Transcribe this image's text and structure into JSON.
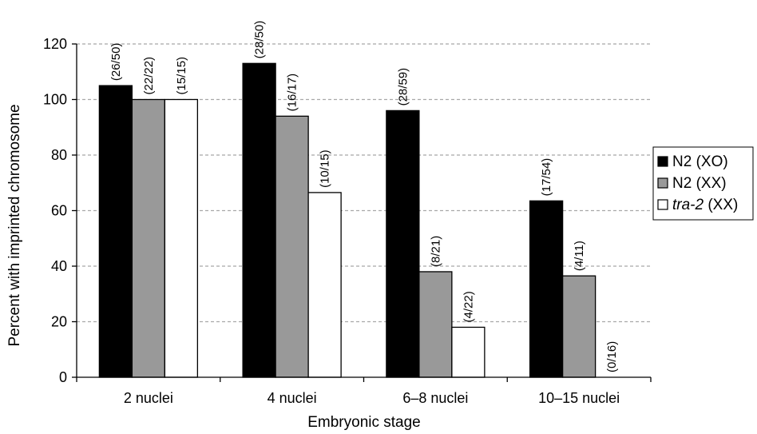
{
  "chart_data": {
    "type": "bar",
    "title": "",
    "xlabel": "Embryonic stage",
    "ylabel": "Percent with imprinted chromosome",
    "ylim": [
      0,
      120
    ],
    "yticks": [
      0,
      20,
      40,
      60,
      80,
      100,
      120
    ],
    "grid": "horizontal dashed",
    "legend_position": "right",
    "categories": [
      "2 nuclei",
      "4 nuclei",
      "6–8 nuclei",
      "10–15 nuclei"
    ],
    "series": [
      {
        "name_main": "N2",
        "name_suffix": " (XO)",
        "italic": false,
        "color": "#000000",
        "values": [
          105,
          113,
          96,
          63.5
        ],
        "labels": [
          "(26/50)",
          "(28/50)",
          "(28/59)",
          "(17/54)"
        ]
      },
      {
        "name_main": "N2",
        "name_suffix": " (XX)",
        "italic": false,
        "color": "#999999",
        "values": [
          100,
          94,
          38,
          36.5
        ],
        "labels": [
          "(22/22)",
          "(16/17)",
          "(8/21)",
          "(4/11)"
        ]
      },
      {
        "name_main": "tra-2",
        "name_suffix": " (XX)",
        "italic": true,
        "color": "#ffffff",
        "values": [
          100,
          66.5,
          18,
          0
        ],
        "labels": [
          "(15/15)",
          "(10/15)",
          "(4/22)",
          "(0/16)"
        ]
      }
    ]
  }
}
